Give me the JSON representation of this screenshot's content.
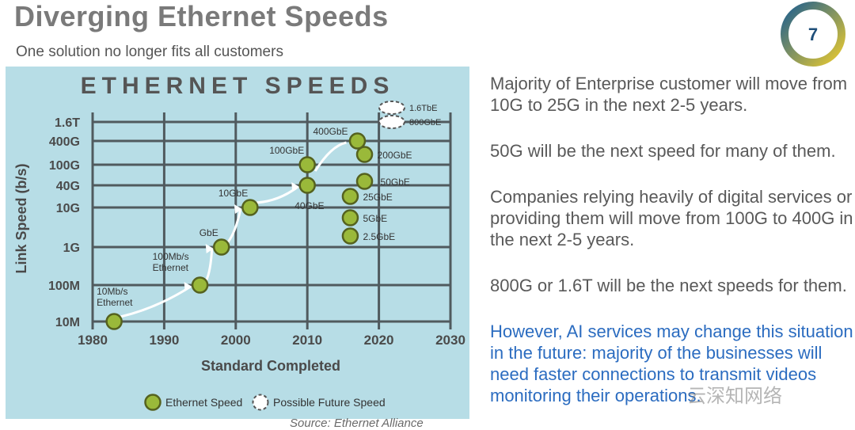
{
  "slide": {
    "title": "Diverging Ethernet Speeds",
    "subtitle": "One solution no longer fits all customers",
    "page_number": "7",
    "source": "Source: Ethernet Alliance",
    "watermark": "云深知网络",
    "colors": {
      "panel_bg": "#b7dde6",
      "dot": "#9ab93a",
      "badge_ring_a": "#1f5f8f",
      "badge_ring_b": "#e8c930",
      "emphasis_text": "#2b6cc0"
    }
  },
  "notes": [
    {
      "text": "Majority of Enterprise customer will move from 10G to 25G in the next 2-5 years."
    },
    {
      "text": "50G will be the next speed for many of them."
    },
    {
      "text": "Companies relying heavily of digital services or providing them will move from 100G to 400G in the next 2-5 years."
    },
    {
      "text": "800G or 1.6T will be the next speeds for them."
    },
    {
      "text": "However, AI services may change this situation in the future: majority of the businesses will need faster connections to transmit videos monitoring their operations."
    }
  ],
  "chart_data": {
    "type": "scatter",
    "title": "ETHERNET SPEEDS",
    "xlabel": "Standard Completed",
    "ylabel": "Link Speed (b/s)",
    "xlim": [
      1980,
      2030
    ],
    "x_ticks": [
      "1980",
      "1990",
      "2000",
      "2010",
      "2020",
      "2030"
    ],
    "y_ticks": [
      "10M",
      "100M",
      "1G",
      "10G",
      "40G",
      "100G",
      "400G",
      "1.6T"
    ],
    "grid": true,
    "legend": [
      {
        "name": "Ethernet Speed",
        "style": "filled"
      },
      {
        "name": "Possible Future Speed",
        "style": "dashed"
      }
    ],
    "series": [
      {
        "name": "Ethernet Speed",
        "points": [
          {
            "label": "10Mb/s Ethernet",
            "year": 1983,
            "speed": "10M",
            "line1": "10Mb/s",
            "line2": "Ethernet"
          },
          {
            "label": "100Mb/s Ethernet",
            "year": 1995,
            "speed": "100M",
            "line1": "100Mb/s",
            "line2": "Ethernet"
          },
          {
            "label": "GbE",
            "year": 1998,
            "speed": "1G"
          },
          {
            "label": "10GbE",
            "year": 2002,
            "speed": "10G"
          },
          {
            "label": "40GbE",
            "year": 2010,
            "speed": "40G"
          },
          {
            "label": "100GbE",
            "year": 2010,
            "speed": "100G"
          },
          {
            "label": "2.5GbE",
            "year": 2016,
            "speed": "2.5G"
          },
          {
            "label": "5GbE",
            "year": 2016,
            "speed": "5G"
          },
          {
            "label": "25GbE",
            "year": 2016,
            "speed": "25G"
          },
          {
            "label": "50GbE",
            "year": 2018,
            "speed": "50G"
          },
          {
            "label": "200GbE",
            "year": 2018,
            "speed": "200G"
          },
          {
            "label": "400GbE",
            "year": 2017,
            "speed": "400G"
          }
        ]
      },
      {
        "name": "Possible Future Speed",
        "points": [
          {
            "label": "1.6TbE",
            "speed": "1.6T"
          },
          {
            "label": "800GbE",
            "speed": "800G"
          }
        ]
      }
    ]
  }
}
